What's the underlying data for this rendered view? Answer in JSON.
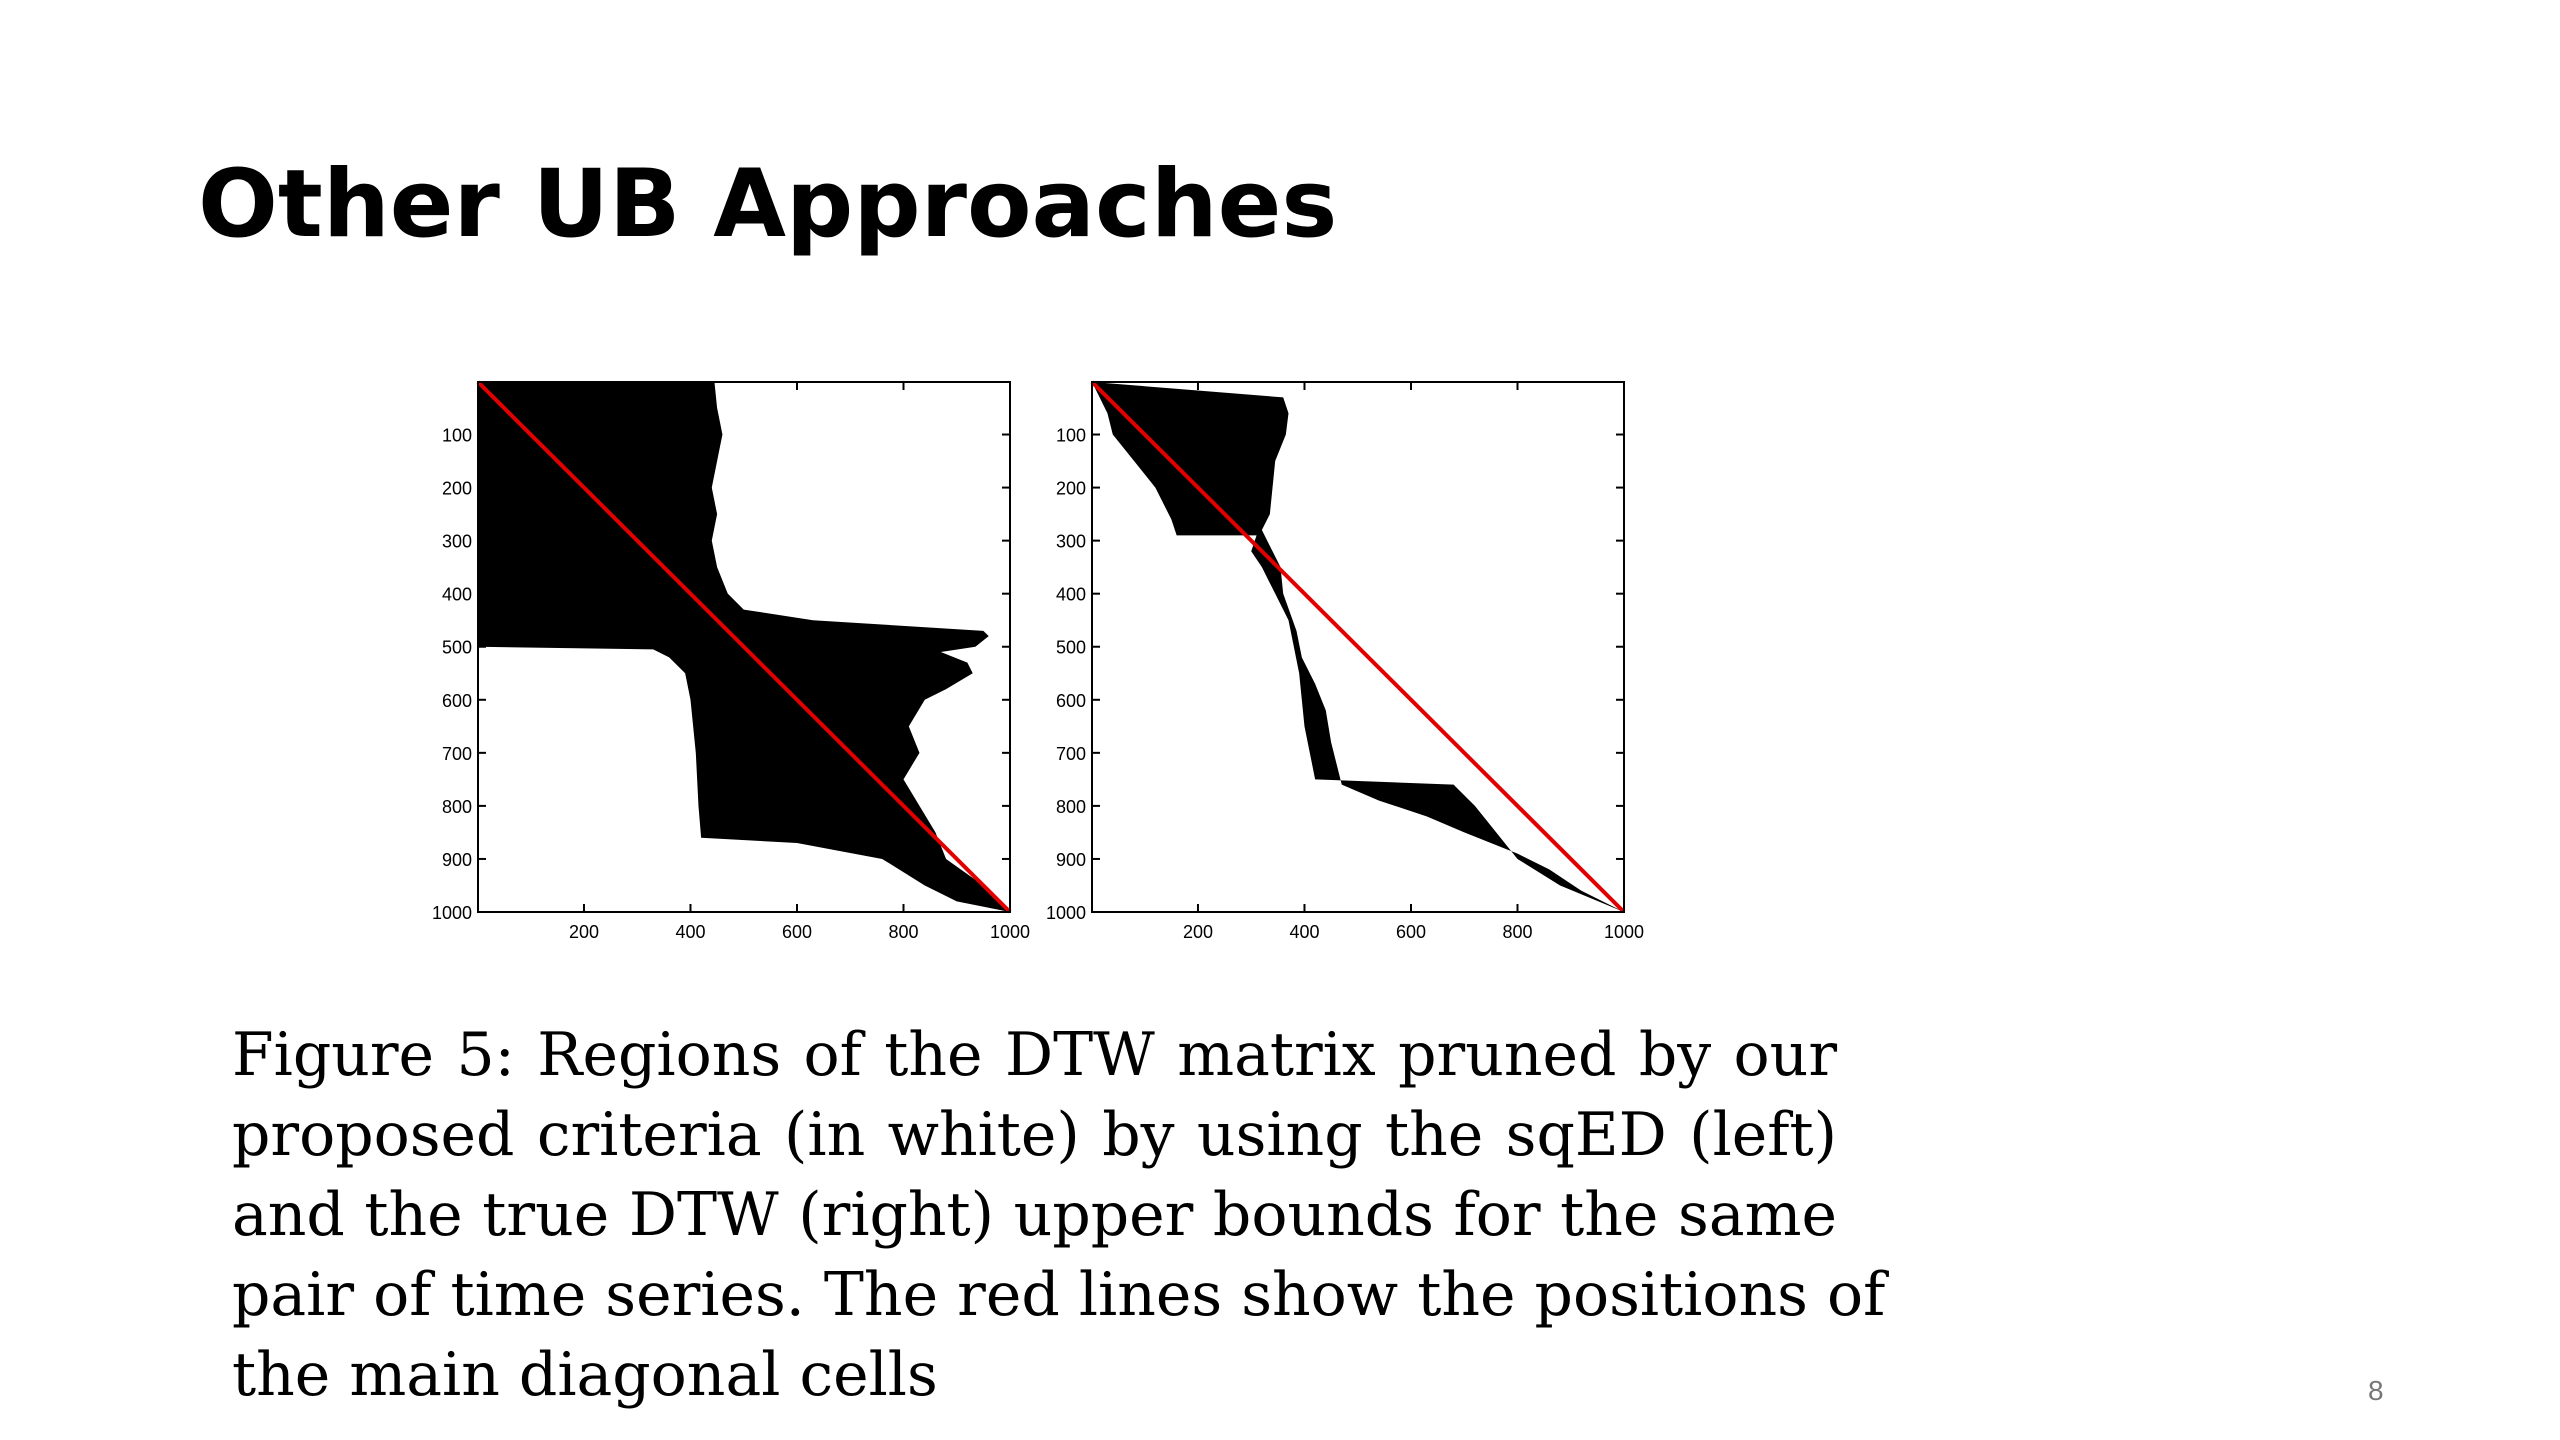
{
  "slide": {
    "title": "Other UB Approaches",
    "page_number": "8"
  },
  "caption": {
    "lines": [
      "Figure 5: Regions of the DTW matrix pruned by our",
      "proposed criteria (in white) by using the sqED (left)",
      "and the true DTW (right) upper bounds for the same",
      "pair of time series. The red lines show the positions of",
      "the main diagonal cells"
    ]
  },
  "colors": {
    "pruned": "#ffffff",
    "kept": "#000000",
    "diagonal": "#e00000",
    "axis": "#000000"
  },
  "chart_data": [
    {
      "type": "heatmap",
      "panel": "left",
      "title": "",
      "xlabel": "",
      "ylabel": "",
      "xlim": [
        1,
        1000
      ],
      "ylim": [
        1,
        1000
      ],
      "y_reversed": true,
      "x_ticks": [
        200,
        400,
        600,
        800,
        1000
      ],
      "y_ticks": [
        100,
        200,
        300,
        400,
        500,
        600,
        700,
        800,
        900,
        1000
      ],
      "diagonal": [
        [
          1,
          1
        ],
        [
          1000,
          1000
        ]
      ],
      "kept_region_upper_edge": [
        [
          1,
          445
        ],
        [
          50,
          450
        ],
        [
          100,
          460
        ],
        [
          150,
          450
        ],
        [
          200,
          440
        ],
        [
          250,
          450
        ],
        [
          300,
          440
        ],
        [
          350,
          450
        ],
        [
          400,
          470
        ],
        [
          430,
          500
        ],
        [
          450,
          630
        ],
        [
          470,
          950
        ],
        [
          480,
          960
        ],
        [
          500,
          935
        ],
        [
          510,
          870
        ],
        [
          530,
          920
        ],
        [
          550,
          930
        ],
        [
          580,
          880
        ],
        [
          600,
          840
        ],
        [
          650,
          810
        ],
        [
          700,
          830
        ],
        [
          750,
          800
        ],
        [
          800,
          830
        ],
        [
          850,
          860
        ],
        [
          900,
          880
        ],
        [
          950,
          950
        ],
        [
          1000,
          1000
        ]
      ],
      "kept_region_lower_edge": [
        [
          1,
          1
        ],
        [
          100,
          1
        ],
        [
          200,
          1
        ],
        [
          300,
          1
        ],
        [
          400,
          1
        ],
        [
          500,
          1
        ],
        [
          505,
          330
        ],
        [
          520,
          360
        ],
        [
          550,
          390
        ],
        [
          600,
          400
        ],
        [
          700,
          410
        ],
        [
          800,
          415
        ],
        [
          860,
          420
        ],
        [
          870,
          600
        ],
        [
          900,
          760
        ],
        [
          950,
          840
        ],
        [
          980,
          900
        ],
        [
          1000,
          1000
        ]
      ]
    },
    {
      "type": "heatmap",
      "panel": "right",
      "title": "",
      "xlabel": "",
      "ylabel": "",
      "xlim": [
        1,
        1000
      ],
      "ylim": [
        1,
        1000
      ],
      "y_reversed": true,
      "x_ticks": [
        200,
        400,
        600,
        800,
        1000
      ],
      "y_ticks": [
        100,
        200,
        300,
        400,
        500,
        600,
        700,
        800,
        900,
        1000
      ],
      "diagonal": [
        [
          1,
          1
        ],
        [
          1000,
          1000
        ]
      ],
      "kept_region_upper_edge": [
        [
          1,
          1
        ],
        [
          30,
          360
        ],
        [
          60,
          370
        ],
        [
          100,
          365
        ],
        [
          150,
          345
        ],
        [
          200,
          340
        ],
        [
          250,
          335
        ],
        [
          280,
          320
        ],
        [
          320,
          340
        ],
        [
          350,
          355
        ],
        [
          400,
          360
        ],
        [
          470,
          385
        ],
        [
          520,
          395
        ],
        [
          570,
          420
        ],
        [
          620,
          440
        ],
        [
          680,
          450
        ],
        [
          760,
          470
        ],
        [
          790,
          540
        ],
        [
          820,
          630
        ],
        [
          850,
          700
        ],
        [
          890,
          800
        ],
        [
          920,
          860
        ],
        [
          960,
          920
        ],
        [
          1000,
          1000
        ]
      ],
      "kept_region_lower_edge": [
        [
          1,
          1
        ],
        [
          60,
          30
        ],
        [
          100,
          40
        ],
        [
          150,
          80
        ],
        [
          200,
          120
        ],
        [
          260,
          150
        ],
        [
          290,
          160
        ],
        [
          290,
          310
        ],
        [
          320,
          300
        ],
        [
          350,
          320
        ],
        [
          400,
          345
        ],
        [
          450,
          370
        ],
        [
          550,
          390
        ],
        [
          650,
          400
        ],
        [
          750,
          420
        ],
        [
          760,
          680
        ],
        [
          800,
          720
        ],
        [
          850,
          760
        ],
        [
          900,
          800
        ],
        [
          950,
          880
        ],
        [
          1000,
          1000
        ]
      ]
    }
  ]
}
